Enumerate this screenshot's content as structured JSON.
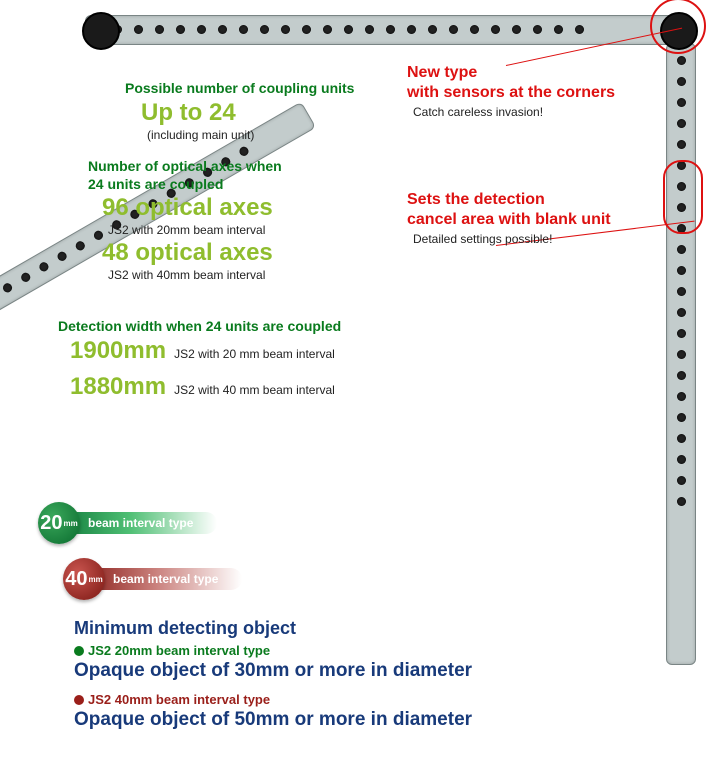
{
  "colors": {
    "green_text": "#0a7b1e",
    "lime_text": "#8fbd2e",
    "red_text": "#d11919",
    "navy_text": "#183a7a",
    "bar_fill": "#c3cccc"
  },
  "coupling": {
    "heading": "Possible number of coupling units",
    "value": "Up to 24",
    "note": "(including main unit)"
  },
  "optical": {
    "heading_line1": "Number of optical axes when",
    "heading_line2": "24 units are coupled",
    "axis1_value": "96 optical axes",
    "axis1_note": "JS2 with 20mm beam interval",
    "axis2_value": "48 optical axes",
    "axis2_note": "JS2 with 40mm beam interval"
  },
  "width": {
    "heading": "Detection width when 24 units are coupled",
    "w1_value": "1900mm",
    "w1_note": "JS2 with 20 mm beam interval",
    "w2_value": "1880mm",
    "w2_note": "JS2 with 40 mm beam interval"
  },
  "callout1": {
    "line1": "New type",
    "line2": "with sensors at the corners",
    "sub": "Catch careless invasion!"
  },
  "callout2": {
    "line1": "Sets the detection",
    "line2": "cancel area with blank unit",
    "sub": "Detailed settings possible!"
  },
  "badges": {
    "green_num": "20",
    "green_unit": "mm",
    "green_label": "beam interval type",
    "red_num": "40",
    "red_unit": "mm",
    "red_label": "beam interval type"
  },
  "min": {
    "heading": "Minimum detecting object",
    "type1_label": "JS2 20mm beam interval type",
    "type1_value": "Opaque object of 30mm or more in diameter",
    "type2_label": "JS2 40mm beam interval type",
    "type2_value": "Opaque object of 50mm or more in diameter"
  }
}
